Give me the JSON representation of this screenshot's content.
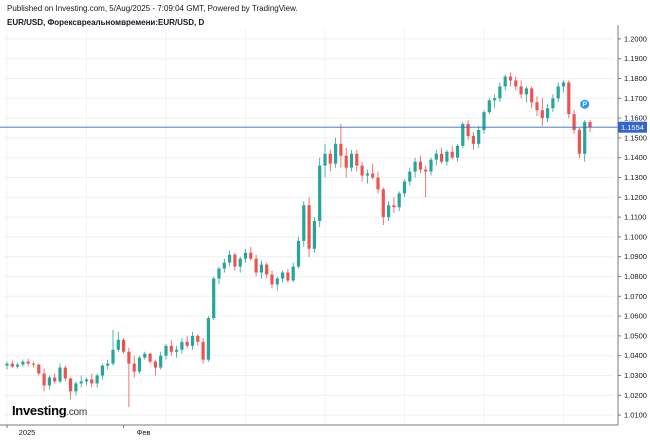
{
  "header": {
    "published": "Published on Investing.com, 5/Aug/2025 - 7:09:04 GMT, Powered by TradingView.",
    "symbol": "EUR/USD, Форексвреальномвремени:EUR/USD, D"
  },
  "logo": {
    "brand": "Investing",
    "suffix": ".com"
  },
  "chart_data": {
    "type": "candlestick",
    "ylim": [
      1.005,
      1.205
    ],
    "y_ticks": [
      "1.2000",
      "1.1900",
      "1.1800",
      "1.1700",
      "1.1600",
      "1.1500",
      "1.1400",
      "1.1300",
      "1.1200",
      "1.1100",
      "1.1000",
      "1.0900",
      "1.0800",
      "1.0700",
      "1.0600",
      "1.0500",
      "1.0400",
      "1.0300",
      "1.0200",
      "1.0100"
    ],
    "x_labels": [
      {
        "label": "2025",
        "index": 0
      },
      {
        "label": "Фев",
        "index": 22
      }
    ],
    "current_price": 1.1554,
    "current_price_label": "1.1554",
    "event_marker": "P",
    "colors": {
      "up": "#26a69a",
      "down": "#ef5350",
      "price_line": "#3366cc",
      "marker": "#2196f3"
    },
    "ohlc": [
      [
        1.035,
        1.037,
        1.033,
        1.036
      ],
      [
        1.036,
        1.0375,
        1.034,
        1.0345
      ],
      [
        1.0345,
        1.0365,
        1.0335,
        1.0355
      ],
      [
        1.0355,
        1.038,
        1.0345,
        1.037
      ],
      [
        1.037,
        1.0385,
        1.035,
        1.036
      ],
      [
        1.036,
        1.037,
        1.034,
        1.0355
      ],
      [
        1.0355,
        1.036,
        1.03,
        1.031
      ],
      [
        1.031,
        1.0335,
        1.022,
        1.025
      ],
      [
        1.025,
        1.03,
        1.023,
        1.029
      ],
      [
        1.029,
        1.031,
        1.026,
        1.027
      ],
      [
        1.027,
        1.036,
        1.026,
        1.034
      ],
      [
        1.034,
        1.035,
        1.027,
        1.0285
      ],
      [
        1.0285,
        1.029,
        1.018,
        1.022
      ],
      [
        1.022,
        1.027,
        1.02,
        1.026
      ],
      [
        1.026,
        1.03,
        1.024,
        1.027
      ],
      [
        1.027,
        1.029,
        1.025,
        1.028
      ],
      [
        1.028,
        1.031,
        1.024,
        1.026
      ],
      [
        1.026,
        1.031,
        1.024,
        1.03
      ],
      [
        1.03,
        1.036,
        1.028,
        1.035
      ],
      [
        1.035,
        1.038,
        1.033,
        1.036
      ],
      [
        1.036,
        1.053,
        1.035,
        1.043
      ],
      [
        1.043,
        1.052,
        1.042,
        1.048
      ],
      [
        1.048,
        1.049,
        1.041,
        1.042
      ],
      [
        1.042,
        1.044,
        1.014,
        1.036
      ],
      [
        1.036,
        1.04,
        1.029,
        1.032
      ],
      [
        1.032,
        1.04,
        1.031,
        1.039
      ],
      [
        1.039,
        1.042,
        1.038,
        1.041
      ],
      [
        1.041,
        1.0415,
        1.036,
        1.037
      ],
      [
        1.037,
        1.038,
        1.03,
        1.034
      ],
      [
        1.034,
        1.042,
        1.033,
        1.04
      ],
      [
        1.04,
        1.046,
        1.038,
        1.045
      ],
      [
        1.045,
        1.048,
        1.04,
        1.042
      ],
      [
        1.042,
        1.045,
        1.039,
        1.043
      ],
      [
        1.043,
        1.049,
        1.041,
        1.047
      ],
      [
        1.047,
        1.05,
        1.044,
        1.045
      ],
      [
        1.045,
        1.052,
        1.043,
        1.05
      ],
      [
        1.05,
        1.051,
        1.045,
        1.047
      ],
      [
        1.047,
        1.049,
        1.036,
        1.038
      ],
      [
        1.038,
        1.06,
        1.037,
        1.059
      ],
      [
        1.059,
        1.08,
        1.058,
        1.079
      ],
      [
        1.079,
        1.085,
        1.076,
        1.084
      ],
      [
        1.084,
        1.089,
        1.082,
        1.087
      ],
      [
        1.087,
        1.093,
        1.085,
        1.091
      ],
      [
        1.091,
        1.092,
        1.083,
        1.085
      ],
      [
        1.085,
        1.09,
        1.082,
        1.089
      ],
      [
        1.089,
        1.094,
        1.087,
        1.092
      ],
      [
        1.092,
        1.095,
        1.088,
        1.089
      ],
      [
        1.089,
        1.091,
        1.08,
        1.082
      ],
      [
        1.082,
        1.088,
        1.079,
        1.086
      ],
      [
        1.086,
        1.087,
        1.079,
        1.081
      ],
      [
        1.081,
        1.083,
        1.074,
        1.076
      ],
      [
        1.076,
        1.08,
        1.073,
        1.079
      ],
      [
        1.079,
        1.083,
        1.077,
        1.082
      ],
      [
        1.082,
        1.084,
        1.077,
        1.078
      ],
      [
        1.078,
        1.087,
        1.077,
        1.085
      ],
      [
        1.085,
        1.1,
        1.084,
        1.098
      ],
      [
        1.098,
        1.118,
        1.095,
        1.116
      ],
      [
        1.116,
        1.12,
        1.09,
        1.094
      ],
      [
        1.094,
        1.11,
        1.092,
        1.108
      ],
      [
        1.108,
        1.14,
        1.105,
        1.136
      ],
      [
        1.136,
        1.147,
        1.13,
        1.142
      ],
      [
        1.142,
        1.144,
        1.133,
        1.137
      ],
      [
        1.137,
        1.15,
        1.135,
        1.147
      ],
      [
        1.147,
        1.157,
        1.135,
        1.141
      ],
      [
        1.141,
        1.145,
        1.13,
        1.135
      ],
      [
        1.135,
        1.144,
        1.133,
        1.142
      ],
      [
        1.142,
        1.144,
        1.133,
        1.136
      ],
      [
        1.136,
        1.138,
        1.128,
        1.131
      ],
      [
        1.131,
        1.134,
        1.127,
        1.132
      ],
      [
        1.132,
        1.137,
        1.129,
        1.13
      ],
      [
        1.13,
        1.133,
        1.122,
        1.124
      ],
      [
        1.124,
        1.125,
        1.106,
        1.11
      ],
      [
        1.11,
        1.118,
        1.108,
        1.116
      ],
      [
        1.116,
        1.12,
        1.112,
        1.115
      ],
      [
        1.115,
        1.123,
        1.113,
        1.122
      ],
      [
        1.122,
        1.129,
        1.12,
        1.128
      ],
      [
        1.128,
        1.135,
        1.126,
        1.133
      ],
      [
        1.133,
        1.14,
        1.13,
        1.138
      ],
      [
        1.138,
        1.141,
        1.132,
        1.134
      ],
      [
        1.134,
        1.136,
        1.12,
        1.133
      ],
      [
        1.133,
        1.14,
        1.131,
        1.139
      ],
      [
        1.139,
        1.144,
        1.136,
        1.142
      ],
      [
        1.142,
        1.145,
        1.137,
        1.138
      ],
      [
        1.138,
        1.144,
        1.136,
        1.143
      ],
      [
        1.143,
        1.146,
        1.139,
        1.14
      ],
      [
        1.14,
        1.147,
        1.138,
        1.146
      ],
      [
        1.146,
        1.158,
        1.145,
        1.157
      ],
      [
        1.157,
        1.159,
        1.149,
        1.151
      ],
      [
        1.151,
        1.153,
        1.144,
        1.147
      ],
      [
        1.147,
        1.156,
        1.145,
        1.154
      ],
      [
        1.154,
        1.164,
        1.152,
        1.163
      ],
      [
        1.163,
        1.17,
        1.162,
        1.169
      ],
      [
        1.169,
        1.172,
        1.165,
        1.17
      ],
      [
        1.17,
        1.178,
        1.168,
        1.176
      ],
      [
        1.176,
        1.182,
        1.174,
        1.181
      ],
      [
        1.181,
        1.183,
        1.176,
        1.179
      ],
      [
        1.179,
        1.181,
        1.174,
        1.176
      ],
      [
        1.176,
        1.179,
        1.17,
        1.172
      ],
      [
        1.172,
        1.176,
        1.168,
        1.175
      ],
      [
        1.175,
        1.176,
        1.165,
        1.168
      ],
      [
        1.168,
        1.171,
        1.161,
        1.164
      ],
      [
        1.164,
        1.17,
        1.156,
        1.16
      ],
      [
        1.16,
        1.167,
        1.158,
        1.165
      ],
      [
        1.165,
        1.172,
        1.163,
        1.17
      ],
      [
        1.17,
        1.178,
        1.168,
        1.176
      ],
      [
        1.176,
        1.179,
        1.173,
        1.178
      ],
      [
        1.178,
        1.179,
        1.16,
        1.162
      ],
      [
        1.162,
        1.164,
        1.152,
        1.154
      ],
      [
        1.154,
        1.155,
        1.14,
        1.142
      ],
      [
        1.142,
        1.159,
        1.138,
        1.158
      ],
      [
        1.158,
        1.159,
        1.153,
        1.1554
      ]
    ]
  }
}
